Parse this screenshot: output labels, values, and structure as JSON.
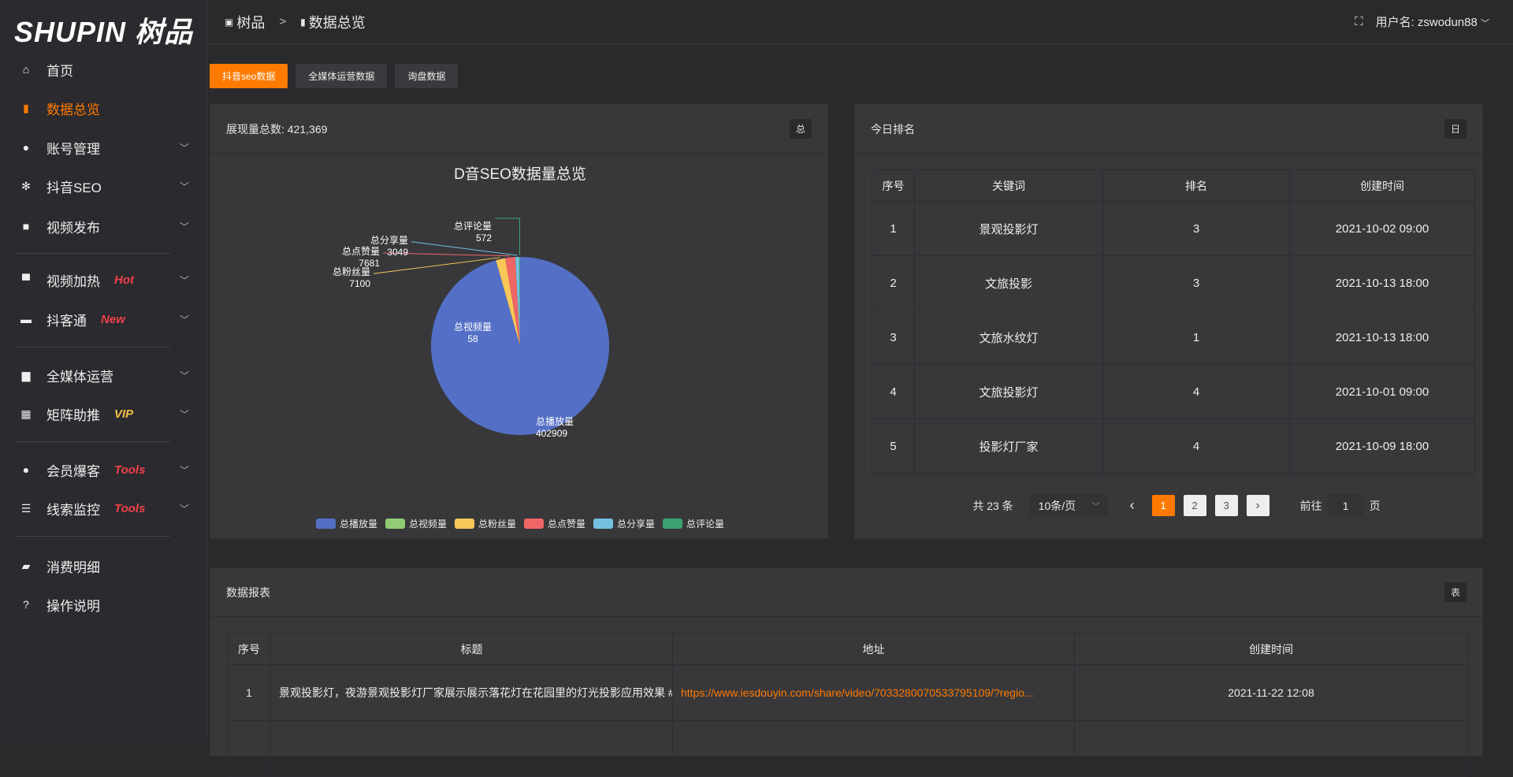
{
  "brand": {
    "logo_text": "SHUPIN 树品"
  },
  "sidebar": {
    "items": [
      {
        "label": "首页",
        "icon": "home-icon",
        "glyph": "⌂"
      },
      {
        "label": "数据总览",
        "icon": "bar-chart-icon",
        "glyph": "▮",
        "active": true
      },
      {
        "label": "账号管理",
        "icon": "user-icon",
        "glyph": "●",
        "chevron": true
      },
      {
        "label": "抖音SEO",
        "icon": "gear-icon",
        "glyph": "✻",
        "chevron": true
      },
      {
        "label": "视频发布",
        "icon": "camera-icon",
        "glyph": "■",
        "chevron": true
      },
      {
        "label": "视频加热",
        "icon": "monitor-stand-icon",
        "glyph": "▀",
        "chevron": true,
        "tag": "Hot",
        "tag_color": "#f0404a"
      },
      {
        "label": "抖客通",
        "icon": "chat-icon",
        "glyph": "▬",
        "chevron": true,
        "tag": "New",
        "tag_color": "#f0404a"
      },
      {
        "label": "全媒体运营",
        "icon": "desktop-icon",
        "glyph": "▆",
        "chevron": true
      },
      {
        "label": "矩阵助推",
        "icon": "grid-icon",
        "glyph": "▦",
        "chevron": true,
        "tag": "VIP",
        "tag_color": "#f5c04a"
      },
      {
        "label": "会员爆客",
        "icon": "user-icon",
        "glyph": "●",
        "chevron": true,
        "tag": "Tools",
        "tag_color": "#f0404a"
      },
      {
        "label": "线索监控",
        "icon": "sliders-icon",
        "glyph": "☰",
        "chevron": true,
        "tag": "Tools",
        "tag_color": "#f0404a"
      },
      {
        "label": "消费明细",
        "icon": "wallet-icon",
        "glyph": "▰"
      },
      {
        "label": "操作说明",
        "icon": "help-icon",
        "glyph": "?"
      }
    ]
  },
  "header": {
    "breadcrumb_home": "树品",
    "breadcrumb_sep": ">",
    "breadcrumb_current": "数据总览",
    "user_label": "用户名: zswodun88",
    "chevron": "﹀",
    "fullscreen_icon": "⛶"
  },
  "tabs": [
    "抖音seo数据",
    "全媒体运营数据",
    "询盘数据"
  ],
  "left_panel": {
    "title": "展现量总数: 421,369",
    "button": "总"
  },
  "chart_data": {
    "type": "pie",
    "title": "D音SEO数据量总览",
    "legend_position": "bottom",
    "slices": [
      {
        "name": "总播放量",
        "value": 402909,
        "color": "#5470c6"
      },
      {
        "name": "总视频量",
        "value": 58,
        "color": "#91cc75"
      },
      {
        "name": "总粉丝量",
        "value": 7100,
        "color": "#fac858"
      },
      {
        "name": "总点赞量",
        "value": 7681,
        "color": "#ee6666"
      },
      {
        "name": "总分享量",
        "value": 3049,
        "color": "#73c0de"
      },
      {
        "name": "总评论量",
        "value": 572,
        "color": "#3ba272"
      }
    ]
  },
  "right_panel": {
    "title": "今日排名",
    "button": "日",
    "columns": [
      "序号",
      "关键词",
      "排名",
      "创建时间"
    ],
    "rows": [
      [
        "1",
        "景观投影灯",
        "3",
        "2021-10-02 09:00"
      ],
      [
        "2",
        "文旅投影",
        "3",
        "2021-10-13 18:00"
      ],
      [
        "3",
        "文旅水纹灯",
        "1",
        "2021-10-13 18:00"
      ],
      [
        "4",
        "文旅投影灯",
        "4",
        "2021-10-01 09:00"
      ],
      [
        "5",
        "投影灯厂家",
        "4",
        "2021-10-09 18:00"
      ]
    ],
    "pagination": {
      "total": "共 23 条",
      "page_size": "10条/页",
      "pages": [
        "1",
        "2",
        "3"
      ],
      "current": "1",
      "prev": "‹",
      "next": "›",
      "goto_label": "前往",
      "goto_value": "1",
      "goto_suffix": "页"
    }
  },
  "bottom_panel": {
    "title": "数据报表",
    "button": "表",
    "columns": [
      "序号",
      "标题",
      "地址",
      "创建时间"
    ],
    "rows": [
      [
        "1",
        "景观投影灯，夜游景观投影灯厂家展示展示落花灯在花园里的灯光投影应用效果 #",
        "https://www.iesdouyin.com/share/video/7033280070533795109/?regio...",
        "2021-11-22 12:08"
      ]
    ]
  },
  "colors": {
    "accent": "#ff7a00"
  }
}
